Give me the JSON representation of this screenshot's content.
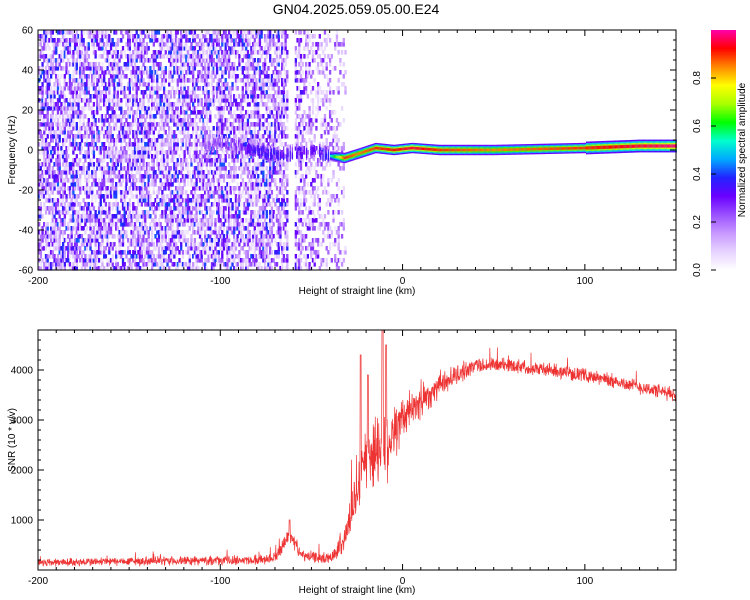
{
  "title": "GN04.2025.059.05.00.E24",
  "colors": {
    "snr_line": "#ee3333",
    "colormap": [
      "#ffffff",
      "#e6d2ff",
      "#c898ff",
      "#9a50ff",
      "#6a00ff",
      "#2222ff",
      "#00aaff",
      "#00ffcc",
      "#00ff00",
      "#aaff00",
      "#ffff00",
      "#ff8800",
      "#ff0000",
      "#ff00aa"
    ]
  },
  "chart_data": [
    {
      "type": "heatmap",
      "name": "spectrogram",
      "xlabel": "Height of straight line (km)",
      "ylabel": "Frequency (Hz)",
      "xlim": [
        -200,
        150
      ],
      "ylim": [
        -60,
        60
      ],
      "xticks": [
        -200,
        -100,
        0,
        100
      ],
      "yticks": [
        -60,
        -40,
        -20,
        0,
        20,
        40,
        60
      ],
      "x_minor_step": 10,
      "y_minor_step": 5,
      "grid": false,
      "colorbar": {
        "label": "Normalized spectral amplitude",
        "range": [
          0,
          1
        ],
        "ticks": [
          0.0,
          0.2,
          0.4,
          0.6,
          0.8
        ]
      },
      "noise_region_x": [
        -200,
        -35
      ],
      "gap_x": [
        -63,
        -60
      ],
      "signal_track": [
        {
          "x": -100,
          "y": 3,
          "a": 0.3
        },
        {
          "x": -90,
          "y": 2,
          "a": 0.35
        },
        {
          "x": -82,
          "y": 0,
          "a": 0.45
        },
        {
          "x": -67,
          "y": -3,
          "a": 0.45
        },
        {
          "x": -50,
          "y": 0,
          "a": 0.4
        },
        {
          "x": -40,
          "y": -3,
          "a": 0.5
        },
        {
          "x": -32,
          "y": -4,
          "a": 0.9
        },
        {
          "x": -25,
          "y": -2,
          "a": 0.85
        },
        {
          "x": -15,
          "y": 1,
          "a": 0.9
        },
        {
          "x": -5,
          "y": 0,
          "a": 0.92
        },
        {
          "x": 5,
          "y": 1,
          "a": 0.95
        },
        {
          "x": 20,
          "y": 0,
          "a": 0.9
        },
        {
          "x": 50,
          "y": 0,
          "a": 0.85
        },
        {
          "x": 100,
          "y": 1,
          "a": 0.9
        },
        {
          "x": 130,
          "y": 2,
          "a": 0.95
        },
        {
          "x": 150,
          "y": 2,
          "a": 0.98
        }
      ]
    },
    {
      "type": "line",
      "name": "snr",
      "xlabel": "Height of straight line (km)",
      "ylabel": "SNR (10 * v/v)",
      "xlim": [
        -200,
        150
      ],
      "ylim": [
        0,
        4800
      ],
      "xticks": [
        -200,
        -100,
        0,
        100
      ],
      "yticks": [
        1000,
        2000,
        3000,
        4000
      ],
      "x_minor_step": 10,
      "y_minor_step": 200,
      "grid": false,
      "envelope": [
        {
          "x": -200,
          "y": 150,
          "spread": 100
        },
        {
          "x": -80,
          "y": 200,
          "spread": 110
        },
        {
          "x": -70,
          "y": 250,
          "spread": 120
        },
        {
          "x": -62,
          "y": 700,
          "spread": 200
        },
        {
          "x": -55,
          "y": 280,
          "spread": 130
        },
        {
          "x": -40,
          "y": 230,
          "spread": 130
        },
        {
          "x": -32,
          "y": 600,
          "spread": 300
        },
        {
          "x": -25,
          "y": 1600,
          "spread": 700
        },
        {
          "x": -18,
          "y": 2300,
          "spread": 900
        },
        {
          "x": -8,
          "y": 2600,
          "spread": 900
        },
        {
          "x": 0,
          "y": 3000,
          "spread": 500
        },
        {
          "x": 20,
          "y": 3700,
          "spread": 300
        },
        {
          "x": 40,
          "y": 4100,
          "spread": 180
        },
        {
          "x": 60,
          "y": 4100,
          "spread": 170
        },
        {
          "x": 100,
          "y": 3900,
          "spread": 160
        },
        {
          "x": 150,
          "y": 3500,
          "spread": 170
        }
      ],
      "spikes": [
        {
          "x": -62,
          "y": 1000
        },
        {
          "x": -23,
          "y": 4300
        },
        {
          "x": -19,
          "y": 3900
        },
        {
          "x": -11,
          "y": 4800
        },
        {
          "x": -9,
          "y": 4500
        }
      ]
    }
  ]
}
